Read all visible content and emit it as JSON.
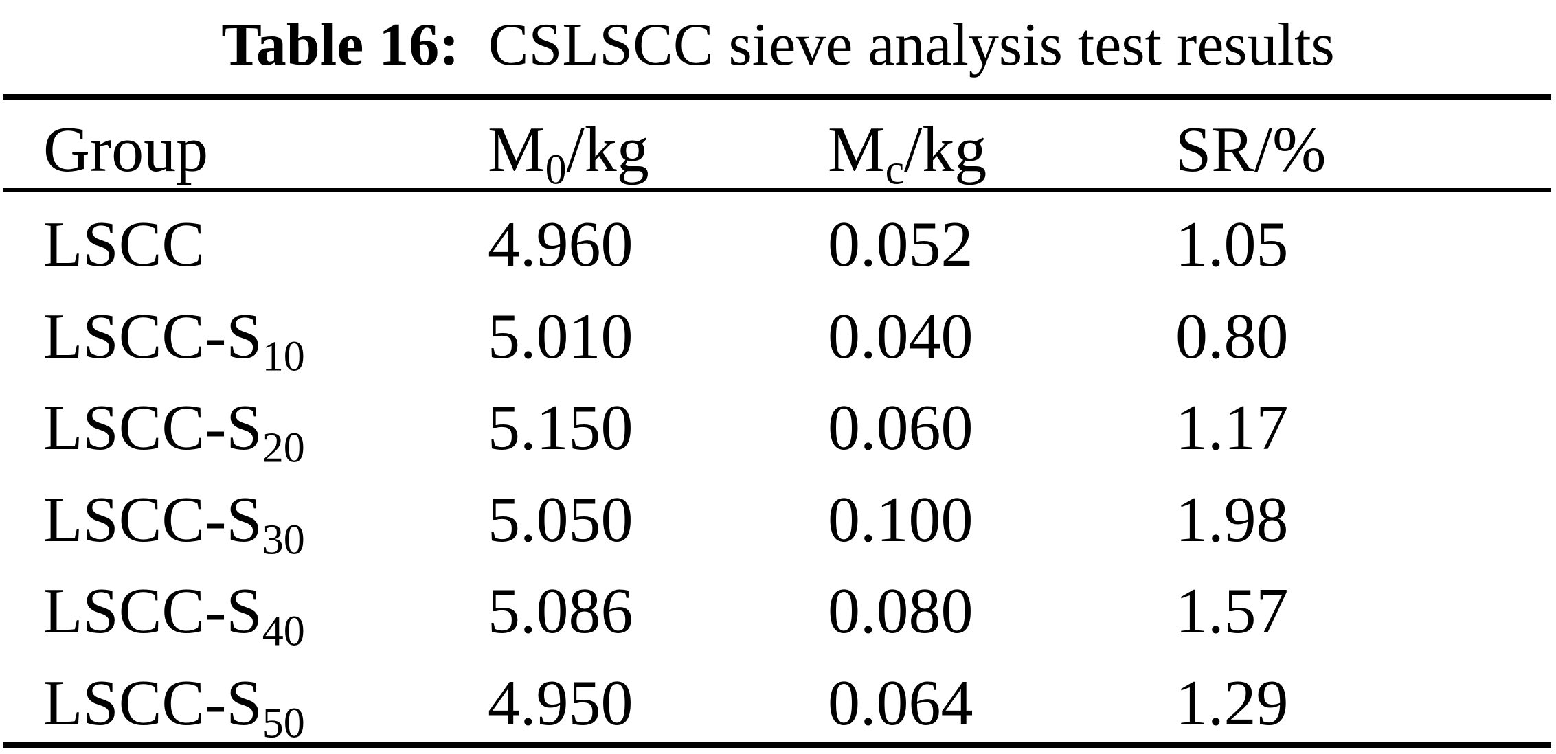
{
  "title": {
    "label": "Table 16:",
    "text": "CSLSCC sieve analysis test results"
  },
  "colors": {
    "text": "#000000",
    "background": "#ffffff",
    "rule": "#000000"
  },
  "table": {
    "columns": [
      {
        "base": "Group",
        "sub": "",
        "rest": ""
      },
      {
        "base": "M",
        "sub": "0",
        "rest": "/kg"
      },
      {
        "base": "M",
        "sub": "c",
        "rest": "/kg"
      },
      {
        "base": "SR/%",
        "sub": "",
        "rest": ""
      }
    ],
    "rows": [
      {
        "group_base": "LSCC",
        "group_sub": "",
        "m0": "4.960",
        "mc": "0.052",
        "sr": "1.05"
      },
      {
        "group_base": "LSCC-S",
        "group_sub": "10",
        "m0": "5.010",
        "mc": "0.040",
        "sr": "0.80"
      },
      {
        "group_base": "LSCC-S",
        "group_sub": "20",
        "m0": "5.150",
        "mc": "0.060",
        "sr": "1.17"
      },
      {
        "group_base": "LSCC-S",
        "group_sub": "30",
        "m0": "5.050",
        "mc": "0.100",
        "sr": "1.98"
      },
      {
        "group_base": "LSCC-S",
        "group_sub": "40",
        "m0": "5.086",
        "mc": "0.080",
        "sr": "1.57"
      },
      {
        "group_base": "LSCC-S",
        "group_sub": "50",
        "m0": "4.950",
        "mc": "0.064",
        "sr": "1.29"
      }
    ]
  }
}
